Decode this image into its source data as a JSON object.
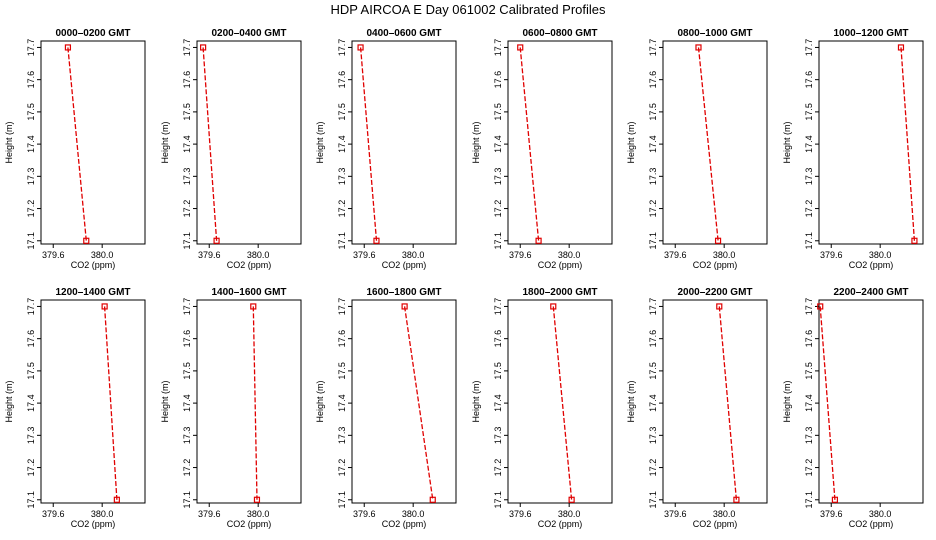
{
  "title": "HDP  AIRCOA E  Day 061002  Calibrated Profiles",
  "colors": {
    "series": "#e00000",
    "frame": "#000000"
  },
  "chart_data": {
    "type": "line",
    "xlabel": "CO2 (ppm)",
    "ylabel": "Height (m)",
    "xlim": [
      379.5,
      380.35
    ],
    "ylim": [
      17.09,
      17.72
    ],
    "xticks": [
      "379.6",
      "380.0"
    ],
    "xtick_values": [
      379.6,
      380.0
    ],
    "yticks": [
      "17.1",
      "17.2",
      "17.3",
      "17.4",
      "17.5",
      "17.6",
      "17.7"
    ],
    "ytick_values": [
      17.1,
      17.2,
      17.3,
      17.4,
      17.5,
      17.6,
      17.7
    ],
    "grid": false,
    "panels": [
      {
        "title": "0000–0200 GMT",
        "points": [
          {
            "x": 379.72,
            "y": 17.7
          },
          {
            "x": 379.87,
            "y": 17.1
          }
        ]
      },
      {
        "title": "0200–0400 GMT",
        "points": [
          {
            "x": 379.55,
            "y": 17.7
          },
          {
            "x": 379.66,
            "y": 17.1
          }
        ]
      },
      {
        "title": "0400–0600 GMT",
        "points": [
          {
            "x": 379.57,
            "y": 17.7
          },
          {
            "x": 379.7,
            "y": 17.1
          }
        ]
      },
      {
        "title": "0600–0800 GMT",
        "points": [
          {
            "x": 379.6,
            "y": 17.7
          },
          {
            "x": 379.75,
            "y": 17.1
          }
        ]
      },
      {
        "title": "0800–1000 GMT",
        "points": [
          {
            "x": 379.79,
            "y": 17.7
          },
          {
            "x": 379.95,
            "y": 17.1
          }
        ]
      },
      {
        "title": "1000–1200 GMT",
        "points": [
          {
            "x": 380.17,
            "y": 17.7
          },
          {
            "x": 380.28,
            "y": 17.1
          }
        ]
      },
      {
        "title": "1200–1400 GMT",
        "points": [
          {
            "x": 380.02,
            "y": 17.7
          },
          {
            "x": 380.12,
            "y": 17.1
          }
        ]
      },
      {
        "title": "1400–1600 GMT",
        "points": [
          {
            "x": 379.96,
            "y": 17.7
          },
          {
            "x": 379.99,
            "y": 17.1
          }
        ]
      },
      {
        "title": "1600–1800 GMT",
        "points": [
          {
            "x": 379.93,
            "y": 17.7
          },
          {
            "x": 380.16,
            "y": 17.1
          }
        ]
      },
      {
        "title": "1800–2000 GMT",
        "points": [
          {
            "x": 379.87,
            "y": 17.7
          },
          {
            "x": 380.02,
            "y": 17.1
          }
        ]
      },
      {
        "title": "2000–2200 GMT",
        "points": [
          {
            "x": 379.96,
            "y": 17.7
          },
          {
            "x": 380.1,
            "y": 17.1
          }
        ]
      },
      {
        "title": "2200–2400 GMT",
        "points": [
          {
            "x": 379.51,
            "y": 17.7
          },
          {
            "x": 379.63,
            "y": 17.1
          }
        ]
      }
    ]
  }
}
